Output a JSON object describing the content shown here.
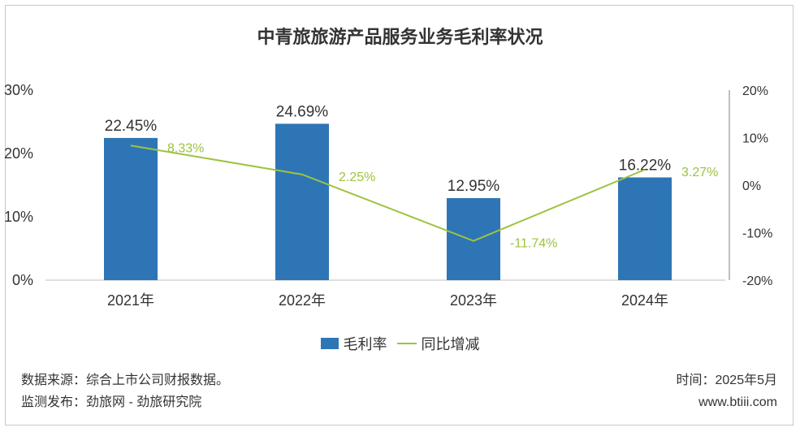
{
  "title": "中青旅旅游产品服务业务毛利率状况",
  "chart_data": {
    "type": "bar",
    "categories": [
      "2021年",
      "2022年",
      "2023年",
      "2024年"
    ],
    "series": [
      {
        "name": "毛利率",
        "type": "bar",
        "axis": "left",
        "values": [
          22.45,
          24.69,
          12.95,
          16.22
        ],
        "labels": [
          "22.45%",
          "24.69%",
          "12.95%",
          "16.22%"
        ],
        "color": "#2e75b6"
      },
      {
        "name": "同比增减",
        "type": "line",
        "axis": "right",
        "values": [
          8.33,
          2.25,
          -11.74,
          3.27
        ],
        "labels": [
          "8.33%",
          "2.25%",
          "-11.74%",
          "3.27%"
        ],
        "color": "#9dc340"
      }
    ],
    "ylim_left": [
      0,
      30
    ],
    "yticks_left": [
      "0%",
      "10%",
      "20%",
      "30%"
    ],
    "ylim_right": [
      -20,
      20
    ],
    "yticks_right": [
      "-20%",
      "-10%",
      "0%",
      "10%",
      "20%"
    ],
    "legend_position": "bottom",
    "grid": false
  },
  "legend": {
    "bar_label": "毛利率",
    "line_label": "同比增减"
  },
  "footer": {
    "source": "数据来源：综合上市公司财报数据。",
    "publisher": "监测发布：劲旅网 - 劲旅研究院",
    "time": "时间：2025年5月",
    "website": "www.btiii.com"
  }
}
